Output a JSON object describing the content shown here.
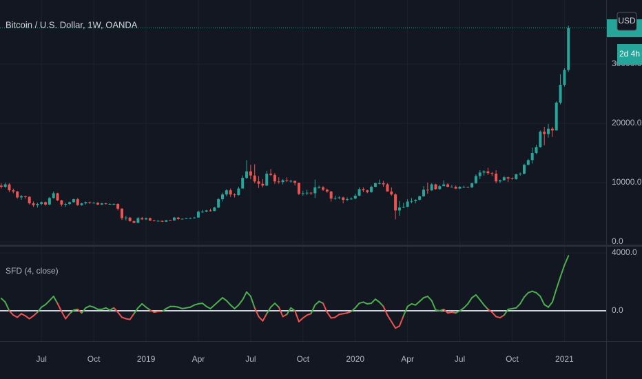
{
  "chart_data": [
    {
      "type": "candlestick",
      "title": "Bitcoin / U.S. Dollar, 1W, OANDA",
      "categories": [
        null,
        null,
        null,
        null,
        null,
        null,
        null,
        null,
        null,
        null,
        "Jul",
        null,
        null,
        null,
        null,
        null,
        null,
        null,
        null,
        null,
        null,
        null,
        null,
        "Oct",
        null,
        null,
        null,
        null,
        null,
        null,
        null,
        null,
        null,
        null,
        null,
        null,
        "2019",
        null,
        null,
        null,
        null,
        null,
        null,
        null,
        null,
        null,
        null,
        null,
        null,
        "Apr",
        null,
        null,
        null,
        null,
        null,
        null,
        null,
        null,
        null,
        null,
        null,
        null,
        "Jul",
        null,
        null,
        null,
        null,
        null,
        null,
        null,
        null,
        null,
        null,
        null,
        null,
        "Oct",
        null,
        null,
        null,
        null,
        null,
        null,
        null,
        null,
        null,
        null,
        null,
        null,
        "2020",
        null,
        null,
        null,
        null,
        null,
        null,
        null,
        null,
        null,
        null,
        null,
        null,
        "Apr",
        null,
        null,
        null,
        null,
        null,
        null,
        null,
        null,
        null,
        null,
        null,
        null,
        "Jul",
        null,
        null,
        null,
        null,
        null,
        null,
        null,
        null,
        null,
        null,
        null,
        null,
        "Oct",
        null,
        null,
        null,
        null,
        null,
        null,
        null,
        null,
        null,
        null,
        null,
        null,
        "2021",
        null
      ],
      "open": [
        9500,
        9300,
        9700,
        8700,
        8500,
        7500,
        7700,
        7600,
        6500,
        6200,
        6400,
        6700,
        6300,
        7400,
        8200,
        7000,
        6300,
        6400,
        6700,
        7200,
        6200,
        6500,
        6700,
        6600,
        6600,
        6300,
        6500,
        6400,
        6400,
        6400,
        5600,
        4000,
        4100,
        3500,
        3200,
        4000,
        3800,
        4000,
        3600,
        3550,
        3550,
        3400,
        3650,
        3600,
        4100,
        3850,
        3900,
        3990,
        4000,
        4100,
        5100,
        5100,
        5300,
        5200,
        5800,
        7200,
        8000,
        8700,
        8000,
        7900,
        9000,
        10800,
        11900,
        11200,
        10200,
        9800,
        9500,
        11500,
        11300,
        10200,
        10100,
        10400,
        10300,
        10300,
        9950,
        8100,
        8200,
        8300,
        8200,
        9200,
        9200,
        8800,
        8500,
        7300,
        7400,
        7500,
        7100,
        7200,
        7300,
        7800,
        8900,
        8700,
        8400,
        9300,
        9900,
        9900,
        9700,
        8500,
        8000,
        5300,
        5800,
        5900,
        6800,
        6900,
        7100,
        7700,
        8800,
        8700,
        9700,
        8900,
        9400,
        9700,
        9300,
        9300,
        9000,
        9300,
        9300,
        9200,
        9900,
        11100,
        11700,
        11900,
        11600,
        11500,
        10200,
        10400,
        10900,
        10700,
        10600,
        11400,
        11500,
        13000,
        13800,
        15000,
        16000,
        18600,
        18200,
        19100,
        18800,
        23500,
        26500,
        29000
      ],
      "high": [
        9900,
        10000,
        9900,
        9000,
        8600,
        7900,
        7800,
        7700,
        6800,
        6600,
        6800,
        6800,
        7600,
        8500,
        8300,
        7100,
        6600,
        6800,
        7300,
        7400,
        6600,
        6800,
        6800,
        6700,
        6700,
        6600,
        6600,
        6500,
        6500,
        6500,
        5700,
        4400,
        4200,
        3600,
        4200,
        4200,
        4100,
        4100,
        3700,
        3650,
        3600,
        3700,
        3700,
        4200,
        4200,
        3950,
        4050,
        4100,
        4200,
        5300,
        5400,
        5400,
        5600,
        5900,
        7400,
        8300,
        8900,
        9000,
        8200,
        9300,
        11200,
        13800,
        13000,
        13100,
        11100,
        10600,
        12000,
        12300,
        11600,
        10900,
        10600,
        10900,
        10500,
        10300,
        10000,
        8600,
        8800,
        8400,
        10500,
        9500,
        9400,
        9000,
        8600,
        7800,
        7700,
        7600,
        7500,
        7500,
        8100,
        9200,
        9200,
        8800,
        9500,
        10000,
        10500,
        10300,
        9900,
        9200,
        8200,
        6900,
        6600,
        7200,
        7400,
        7200,
        7800,
        9400,
        10000,
        9900,
        9800,
        9600,
        10400,
        9900,
        9600,
        9500,
        9400,
        9500,
        9300,
        10000,
        11400,
        12100,
        12100,
        12500,
        11800,
        12100,
        10500,
        11100,
        11000,
        10900,
        11500,
        11700,
        13200,
        14000,
        15900,
        16400,
        18800,
        19400,
        19900,
        19400,
        23700,
        28300,
        29300,
        36500
      ],
      "low": [
        9000,
        9100,
        8400,
        8200,
        7300,
        7100,
        7300,
        6300,
        5900,
        5800,
        6200,
        6100,
        6200,
        7300,
        6900,
        6000,
        5900,
        6200,
        6600,
        6100,
        6100,
        6300,
        6400,
        6500,
        6200,
        6200,
        6300,
        6300,
        6300,
        5300,
        3700,
        3600,
        3400,
        3200,
        3200,
        3700,
        3700,
        3500,
        3500,
        3450,
        3350,
        3350,
        3550,
        3600,
        3700,
        3800,
        3850,
        3950,
        3950,
        4100,
        4900,
        5000,
        5100,
        5200,
        5700,
        6800,
        7700,
        7600,
        7500,
        7800,
        9000,
        10600,
        10600,
        9900,
        9100,
        9200,
        9400,
        11100,
        9800,
        9800,
        9700,
        10100,
        10000,
        9500,
        7900,
        7800,
        7900,
        7900,
        7400,
        9000,
        8600,
        8300,
        6800,
        7100,
        7200,
        6500,
        6900,
        7100,
        7200,
        7700,
        8400,
        8200,
        8300,
        9200,
        9700,
        9300,
        8500,
        7800,
        3800,
        4400,
        5700,
        5900,
        6500,
        6500,
        7000,
        7600,
        8100,
        8600,
        8800,
        8800,
        9400,
        9200,
        9200,
        8900,
        8900,
        9100,
        9100,
        9100,
        9800,
        10600,
        11200,
        11300,
        11100,
        9900,
        9900,
        10300,
        10100,
        10500,
        10500,
        11200,
        11400,
        12900,
        13200,
        14800,
        15900,
        16300,
        17600,
        17700,
        18800,
        23200,
        26200,
        28700
      ],
      "close": [
        9300,
        9700,
        8700,
        8500,
        7500,
        7700,
        7600,
        6500,
        6200,
        6400,
        6700,
        6300,
        7400,
        8200,
        7000,
        6300,
        6400,
        6700,
        7200,
        6200,
        6500,
        6700,
        6600,
        6600,
        6300,
        6500,
        6400,
        6400,
        6400,
        5600,
        4000,
        4100,
        3500,
        3200,
        4000,
        3800,
        4000,
        3600,
        3550,
        3550,
        3400,
        3650,
        3600,
        4100,
        3850,
        3900,
        3990,
        4000,
        4100,
        5100,
        5100,
        5300,
        5200,
        5800,
        7200,
        8000,
        8700,
        8000,
        7900,
        9000,
        10800,
        11900,
        11200,
        10200,
        9800,
        9500,
        11500,
        11300,
        10200,
        10100,
        10400,
        10300,
        10300,
        9950,
        8100,
        8200,
        8300,
        8200,
        9200,
        9200,
        8800,
        8500,
        7300,
        7400,
        7500,
        7100,
        7200,
        7300,
        7800,
        8900,
        8700,
        8400,
        9300,
        9900,
        9900,
        9700,
        8500,
        8000,
        5300,
        5800,
        5900,
        6800,
        6900,
        7100,
        7700,
        8800,
        8700,
        9700,
        8900,
        9400,
        9700,
        9300,
        9300,
        9000,
        9300,
        9300,
        9200,
        9900,
        11100,
        11700,
        11900,
        11600,
        11500,
        10200,
        10400,
        10900,
        10700,
        10600,
        11400,
        11500,
        13000,
        13800,
        15000,
        16000,
        18600,
        18200,
        19100,
        18800,
        23500,
        26500,
        29000,
        36100
      ],
      "up_color": "#26a69a",
      "down_color": "#ef5350",
      "ylim": [
        -465,
        40814
      ],
      "yticks": [
        {
          "value": 0,
          "label": "0.0"
        },
        {
          "value": 10000,
          "label": "10000.0"
        },
        {
          "value": 20000,
          "label": "20000.0"
        },
        {
          "value": 30000,
          "label": "30000.0"
        }
      ],
      "grid": true,
      "currency": "USD",
      "countdown": "2d 4h"
    },
    {
      "type": "line",
      "title": "SFD (4, close)",
      "values": [
        860,
        600,
        0,
        -300,
        -450,
        -200,
        -350,
        -550,
        -350,
        -100,
        250,
        430,
        700,
        1000,
        500,
        -50,
        -550,
        -200,
        50,
        100,
        -150,
        200,
        330,
        250,
        100,
        100,
        200,
        50,
        200,
        -100,
        -450,
        -550,
        -600,
        -200,
        200,
        480,
        250,
        50,
        -100,
        -50,
        -50,
        150,
        300,
        300,
        250,
        150,
        200,
        250,
        400,
        480,
        520,
        300,
        150,
        400,
        650,
        900,
        700,
        400,
        150,
        400,
        760,
        1300,
        1000,
        200,
        -400,
        -700,
        -200,
        250,
        520,
        250,
        -400,
        -250,
        200,
        0,
        -750,
        -500,
        -300,
        -200,
        400,
        650,
        520,
        -100,
        -500,
        -450,
        -250,
        -200,
        -150,
        -50,
        200,
        520,
        600,
        480,
        520,
        800,
        600,
        300,
        -300,
        -750,
        -1200,
        -1050,
        -350,
        300,
        480,
        400,
        650,
        900,
        1000,
        700,
        50,
        0,
        100,
        -150,
        -100,
        -150,
        0,
        200,
        480,
        900,
        1100,
        760,
        400,
        100,
        -100,
        -400,
        -480,
        -300,
        100,
        150,
        200,
        480,
        950,
        1250,
        1350,
        1250,
        1000,
        430,
        250,
        600,
        1500,
        2350,
        3150,
        3800
      ],
      "up_color": "#4caf50",
      "down_color": "#ef5350",
      "hlines": [
        0
      ],
      "hline_color": "#d1d4dc",
      "ylim": [
        -2095,
        4429
      ],
      "yticks": [
        {
          "value": 0,
          "label": "0.0"
        },
        {
          "value": 4000,
          "label": "4000.0"
        }
      ],
      "grid": true
    }
  ]
}
